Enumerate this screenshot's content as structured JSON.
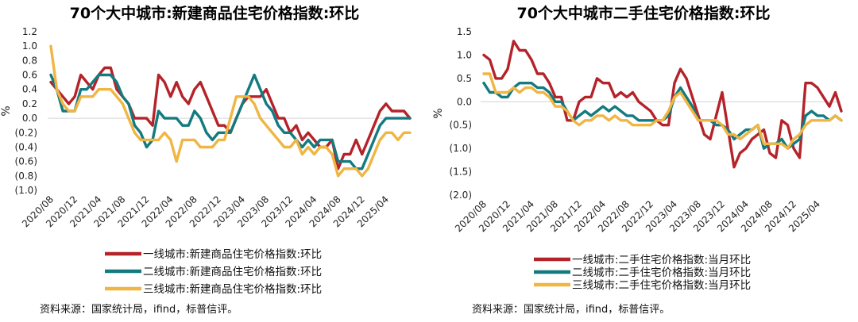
{
  "colors": {
    "tier1": "#B5232A",
    "tier2": "#137A7F",
    "tier3": "#F0B543"
  },
  "source": "资料来源：国家统计局，ifind，标普信评。",
  "chart_data": [
    {
      "type": "line",
      "title": "70个大中城市:新建商品住宅价格指数:环比",
      "ylabel": "%",
      "ylim": [
        -1.0,
        1.2
      ],
      "yticks": [
        "1.2",
        "1.0",
        "0.8",
        "0.6",
        "0.4",
        "0.2",
        "0.0",
        "(0.2)",
        "(0.4)",
        "(0.6)",
        "(0.8)",
        "(1.0)"
      ],
      "xticks": [
        "2020/08",
        "2020/12",
        "2021/04",
        "2021/08",
        "2021/12",
        "2022/04",
        "2022/08",
        "2022/12",
        "2023/04",
        "2023/08",
        "2023/12",
        "2024/04",
        "2024/08",
        "2024/12",
        "2025/04"
      ],
      "series": [
        {
          "name": "一线城市:新建商品住宅价格指数:环比",
          "color": "#B5232A",
          "values": [
            0.5,
            0.4,
            0.3,
            0.2,
            0.3,
            0.6,
            0.5,
            0.4,
            0.6,
            0.7,
            0.7,
            0.4,
            0.3,
            0.2,
            0.0,
            0.0,
            0.0,
            -0.1,
            0.6,
            0.5,
            0.3,
            0.5,
            0.3,
            0.2,
            0.4,
            0.5,
            0.3,
            0.1,
            -0.1,
            -0.1,
            -0.2,
            0.0,
            0.2,
            0.3,
            0.3,
            0.3,
            0.4,
            0.2,
            0.0,
            0.0,
            -0.2,
            -0.1,
            -0.3,
            -0.2,
            -0.3,
            -0.4,
            -0.4,
            -0.3,
            -0.7,
            -0.5,
            -0.5,
            -0.3,
            -0.5,
            -0.3,
            -0.1,
            0.1,
            0.2,
            0.1,
            0.1,
            0.1,
            0.0
          ]
        },
        {
          "name": "二线城市:新建商品住宅价格指数:环比",
          "color": "#137A7F",
          "values": [
            0.6,
            0.4,
            0.1,
            0.1,
            0.1,
            0.4,
            0.4,
            0.5,
            0.6,
            0.6,
            0.6,
            0.5,
            0.3,
            0.2,
            -0.1,
            -0.2,
            -0.4,
            -0.3,
            0.1,
            0.0,
            0.0,
            0.0,
            -0.1,
            -0.1,
            0.1,
            0.0,
            -0.2,
            -0.3,
            -0.2,
            -0.2,
            -0.2,
            0.0,
            0.2,
            0.4,
            0.6,
            0.4,
            0.2,
            0.1,
            -0.1,
            -0.2,
            -0.2,
            -0.3,
            -0.4,
            -0.3,
            -0.4,
            -0.3,
            -0.3,
            -0.3,
            -0.6,
            -0.6,
            -0.6,
            -0.7,
            -0.7,
            -0.5,
            -0.3,
            -0.1,
            0.0,
            0.0,
            0.0,
            0.0,
            0.0
          ]
        },
        {
          "name": "三线城市:新建商品住宅价格指数:环比",
          "color": "#F0B543",
          "values": [
            1.0,
            0.4,
            0.2,
            0.1,
            0.1,
            0.3,
            0.3,
            0.3,
            0.4,
            0.4,
            0.4,
            0.3,
            0.2,
            0.0,
            -0.2,
            -0.3,
            -0.3,
            -0.3,
            -0.3,
            -0.2,
            -0.3,
            -0.6,
            -0.3,
            -0.3,
            -0.3,
            -0.4,
            -0.4,
            -0.4,
            -0.3,
            -0.3,
            0.0,
            0.3,
            0.3,
            0.3,
            0.2,
            0.0,
            -0.1,
            -0.2,
            -0.3,
            -0.4,
            -0.4,
            -0.3,
            -0.5,
            -0.4,
            -0.5,
            -0.4,
            -0.4,
            -0.5,
            -0.8,
            -0.7,
            -0.7,
            -0.7,
            -0.8,
            -0.7,
            -0.5,
            -0.3,
            -0.2,
            -0.2,
            -0.3,
            -0.2,
            -0.2
          ]
        }
      ]
    },
    {
      "type": "line",
      "title": "70个大中城市二手住宅价格指数:环比",
      "ylabel": "%",
      "ylim": [
        -2.0,
        1.5
      ],
      "yticks": [
        "1.5",
        "1.0",
        "0.5",
        "0.0",
        "(0.5)",
        "(1.0)",
        "(1.5)",
        "(2.0)"
      ],
      "xticks": [
        "2020/08",
        "2020/12",
        "2021/04",
        "2021/08",
        "2021/12",
        "2022/04",
        "2022/08",
        "2022/12",
        "2023/04",
        "2023/08",
        "2023/12",
        "2024/04",
        "2024/08",
        "2024/12",
        "2025/04"
      ],
      "series": [
        {
          "name": "一线城市:二手住宅价格指数:当月环比",
          "color": "#B5232A",
          "values": [
            1.0,
            0.9,
            0.5,
            0.5,
            0.7,
            1.3,
            1.1,
            1.1,
            0.9,
            0.6,
            0.6,
            0.4,
            0.1,
            0.1,
            -0.4,
            -0.4,
            0.0,
            0.1,
            0.1,
            0.5,
            0.4,
            0.4,
            0.1,
            0.2,
            0.1,
            0.2,
            0.0,
            -0.1,
            -0.2,
            -0.4,
            -0.5,
            -0.5,
            0.4,
            0.7,
            0.5,
            0.1,
            -0.3,
            -0.7,
            -0.8,
            -0.3,
            0.2,
            -0.6,
            -1.4,
            -1.1,
            -1.0,
            -0.8,
            -0.7,
            -0.6,
            -1.1,
            -1.2,
            -0.4,
            -0.5,
            -1.0,
            -1.2,
            0.4,
            0.4,
            0.3,
            0.1,
            -0.1,
            0.2,
            -0.2
          ]
        },
        {
          "name": "二线城市:二手住宅价格指数:当月环比",
          "color": "#137A7F",
          "values": [
            0.4,
            0.2,
            0.2,
            0.1,
            0.1,
            0.3,
            0.4,
            0.4,
            0.4,
            0.3,
            0.3,
            0.2,
            0.0,
            0.0,
            -0.2,
            -0.4,
            -0.3,
            -0.2,
            -0.3,
            -0.2,
            -0.1,
            -0.2,
            -0.1,
            -0.2,
            -0.3,
            -0.3,
            -0.4,
            -0.4,
            -0.4,
            -0.4,
            -0.4,
            -0.3,
            0.1,
            0.3,
            0.1,
            -0.1,
            -0.4,
            -0.4,
            -0.4,
            -0.5,
            -0.5,
            -0.6,
            -0.8,
            -0.7,
            -0.6,
            -0.6,
            -0.5,
            -1.0,
            -0.9,
            -0.9,
            -0.8,
            -1.0,
            -0.9,
            -0.8,
            -0.3,
            -0.2,
            -0.3,
            -0.3,
            -0.4,
            -0.3,
            -0.4
          ]
        },
        {
          "name": "三线城市:二手住宅价格指数:当月环比",
          "color": "#F0B543",
          "values": [
            0.6,
            0.6,
            0.2,
            0.2,
            0.2,
            0.3,
            0.2,
            0.3,
            0.3,
            0.2,
            0.2,
            0.1,
            -0.1,
            -0.1,
            -0.2,
            -0.4,
            -0.5,
            -0.4,
            -0.4,
            -0.3,
            -0.3,
            -0.4,
            -0.3,
            -0.4,
            -0.4,
            -0.5,
            -0.5,
            -0.5,
            -0.5,
            -0.4,
            -0.4,
            -0.2,
            0.1,
            0.2,
            0.0,
            -0.2,
            -0.4,
            -0.4,
            -0.4,
            -0.4,
            -0.5,
            -0.7,
            -0.7,
            -0.8,
            -0.7,
            -0.6,
            -0.5,
            -0.9,
            -0.9,
            -0.9,
            -0.9,
            -1.0,
            -0.8,
            -0.7,
            -0.5,
            -0.4,
            -0.4,
            -0.4,
            -0.4,
            -0.3,
            -0.4
          ]
        }
      ]
    }
  ]
}
